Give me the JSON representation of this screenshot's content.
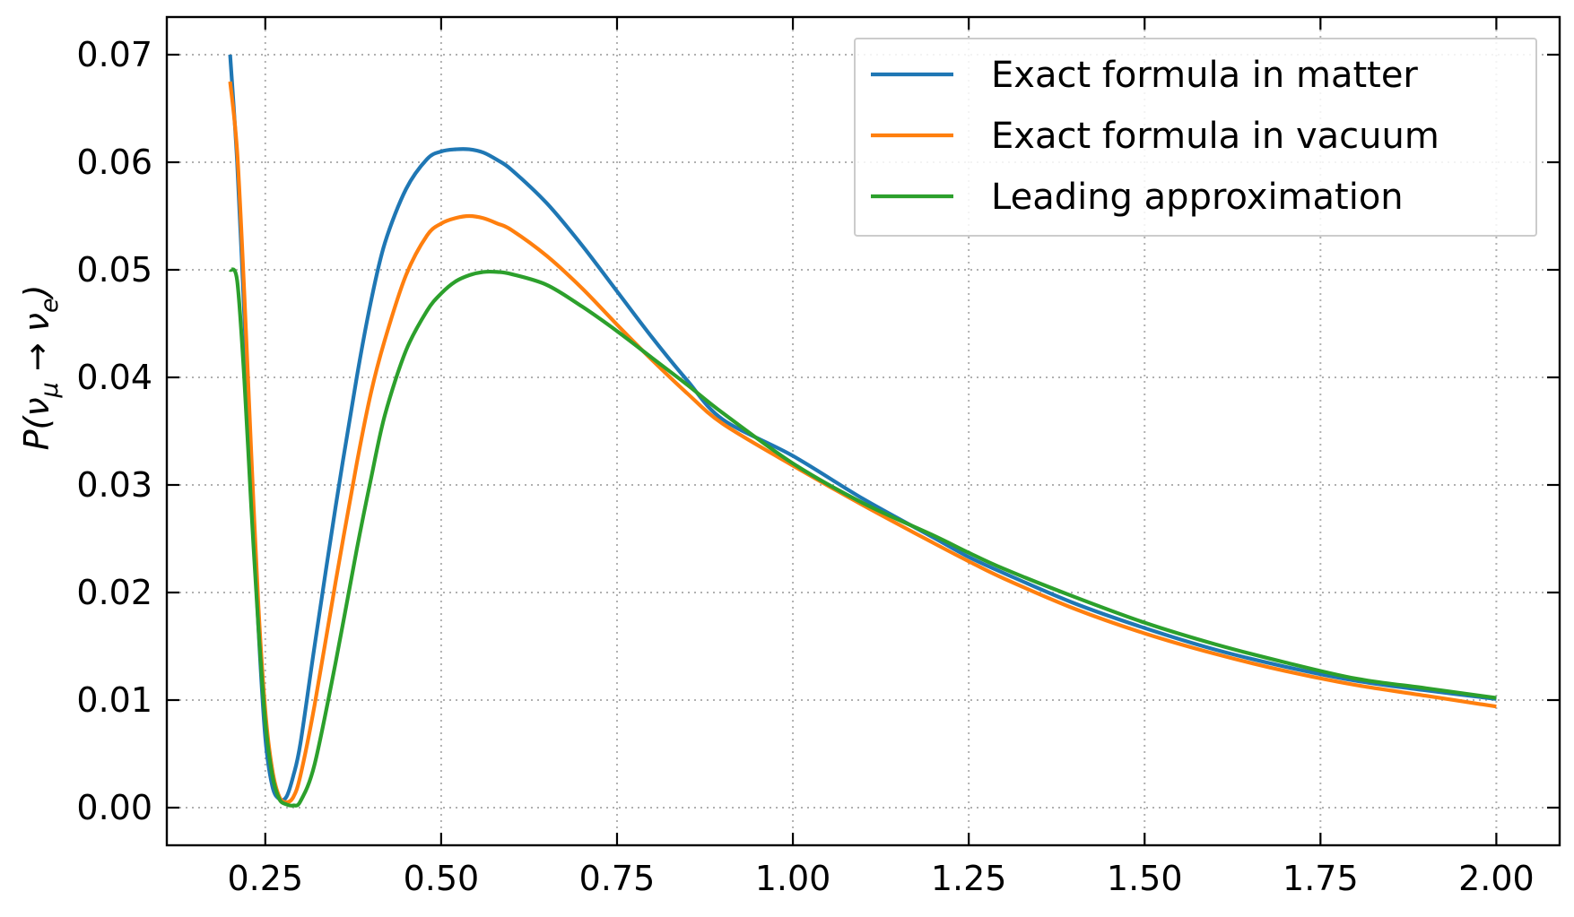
{
  "chart_data": {
    "type": "line",
    "title": "",
    "xlabel": "",
    "ylabel": "P(ν_μ → ν_e)",
    "ylabel_parts": {
      "pre": "P(",
      "nu1": "ν",
      "sub1": "μ",
      "arrow": " → ",
      "nu2": "ν",
      "sub2": "e",
      "post": ")"
    },
    "xlim": [
      0.11,
      2.09
    ],
    "ylim": [
      -0.0035,
      0.0735
    ],
    "x_ticks": [
      0.25,
      0.5,
      0.75,
      1.0,
      1.25,
      1.5,
      1.75,
      2.0
    ],
    "x_tick_labels": [
      "0.25",
      "0.50",
      "0.75",
      "1.00",
      "1.25",
      "1.50",
      "1.75",
      "2.00"
    ],
    "y_ticks": [
      0.0,
      0.01,
      0.02,
      0.03,
      0.04,
      0.05,
      0.06,
      0.07
    ],
    "y_tick_labels": [
      "0.00",
      "0.01",
      "0.02",
      "0.03",
      "0.04",
      "0.05",
      "0.06",
      "0.07"
    ],
    "grid": true,
    "legend_position": "top-right",
    "series": [
      {
        "name": "Exact formula in matter",
        "color": "#1f77b4",
        "x": [
          0.2,
          0.21,
          0.22,
          0.23,
          0.24,
          0.25,
          0.26,
          0.27,
          0.28,
          0.29,
          0.3,
          0.32,
          0.35,
          0.38,
          0.4,
          0.42,
          0.45,
          0.48,
          0.5,
          0.52,
          0.54,
          0.56,
          0.58,
          0.6,
          0.65,
          0.7,
          0.75,
          0.8,
          0.85,
          0.9,
          1.0,
          1.1,
          1.2,
          1.25,
          1.3,
          1.4,
          1.5,
          1.6,
          1.7,
          1.8,
          1.9,
          2.0
        ],
        "y": [
          0.07,
          0.06,
          0.046,
          0.031,
          0.017,
          0.0065,
          0.002,
          0.0008,
          0.001,
          0.003,
          0.006,
          0.015,
          0.028,
          0.04,
          0.047,
          0.0525,
          0.0575,
          0.0603,
          0.061,
          0.0612,
          0.0612,
          0.0609,
          0.0602,
          0.0593,
          0.0562,
          0.0523,
          0.048,
          0.0437,
          0.0397,
          0.0361,
          0.0327,
          0.0287,
          0.0251,
          0.0233,
          0.0218,
          0.019,
          0.0167,
          0.0147,
          0.0131,
          0.0118,
          0.0109,
          0.0101
        ]
      },
      {
        "name": "Exact formula in vacuum",
        "color": "#ff7f0e",
        "x": [
          0.2,
          0.21,
          0.22,
          0.23,
          0.24,
          0.25,
          0.26,
          0.27,
          0.28,
          0.29,
          0.3,
          0.32,
          0.35,
          0.38,
          0.4,
          0.42,
          0.45,
          0.48,
          0.5,
          0.52,
          0.54,
          0.56,
          0.58,
          0.6,
          0.65,
          0.7,
          0.75,
          0.8,
          0.85,
          0.9,
          1.0,
          1.1,
          1.2,
          1.25,
          1.3,
          1.4,
          1.5,
          1.6,
          1.7,
          1.8,
          1.9,
          2.0
        ],
        "y": [
          0.0675,
          0.061,
          0.048,
          0.033,
          0.019,
          0.009,
          0.0035,
          0.001,
          0.0005,
          0.001,
          0.003,
          0.0095,
          0.021,
          0.032,
          0.0385,
          0.0435,
          0.0495,
          0.0532,
          0.0543,
          0.0548,
          0.055,
          0.0548,
          0.0543,
          0.0537,
          0.0513,
          0.0483,
          0.0449,
          0.0416,
          0.0385,
          0.0357,
          0.0318,
          0.0281,
          0.0246,
          0.0229,
          0.0213,
          0.0185,
          0.0162,
          0.0143,
          0.0127,
          0.0114,
          0.0104,
          0.0094
        ]
      },
      {
        "name": "Leading approximation",
        "color": "#2ca02c",
        "x": [
          0.2,
          0.21,
          0.22,
          0.23,
          0.24,
          0.25,
          0.26,
          0.27,
          0.28,
          0.29,
          0.3,
          0.32,
          0.35,
          0.38,
          0.4,
          0.42,
          0.45,
          0.48,
          0.5,
          0.52,
          0.54,
          0.56,
          0.58,
          0.6,
          0.65,
          0.7,
          0.75,
          0.8,
          0.85,
          0.9,
          1.0,
          1.1,
          1.2,
          1.25,
          1.3,
          1.4,
          1.5,
          1.6,
          1.7,
          1.8,
          1.9,
          2.0
        ],
        "y": [
          0.05,
          0.049,
          0.04,
          0.028,
          0.017,
          0.008,
          0.003,
          0.0008,
          0.0003,
          0.0002,
          0.0006,
          0.004,
          0.0135,
          0.024,
          0.0305,
          0.0365,
          0.0425,
          0.0462,
          0.0478,
          0.0489,
          0.0495,
          0.0498,
          0.0498,
          0.0496,
          0.0486,
          0.0466,
          0.0443,
          0.0418,
          0.0393,
          0.0367,
          0.032,
          0.0283,
          0.0253,
          0.0237,
          0.0222,
          0.0196,
          0.0172,
          0.0152,
          0.0135,
          0.012,
          0.0111,
          0.0102
        ]
      }
    ]
  }
}
